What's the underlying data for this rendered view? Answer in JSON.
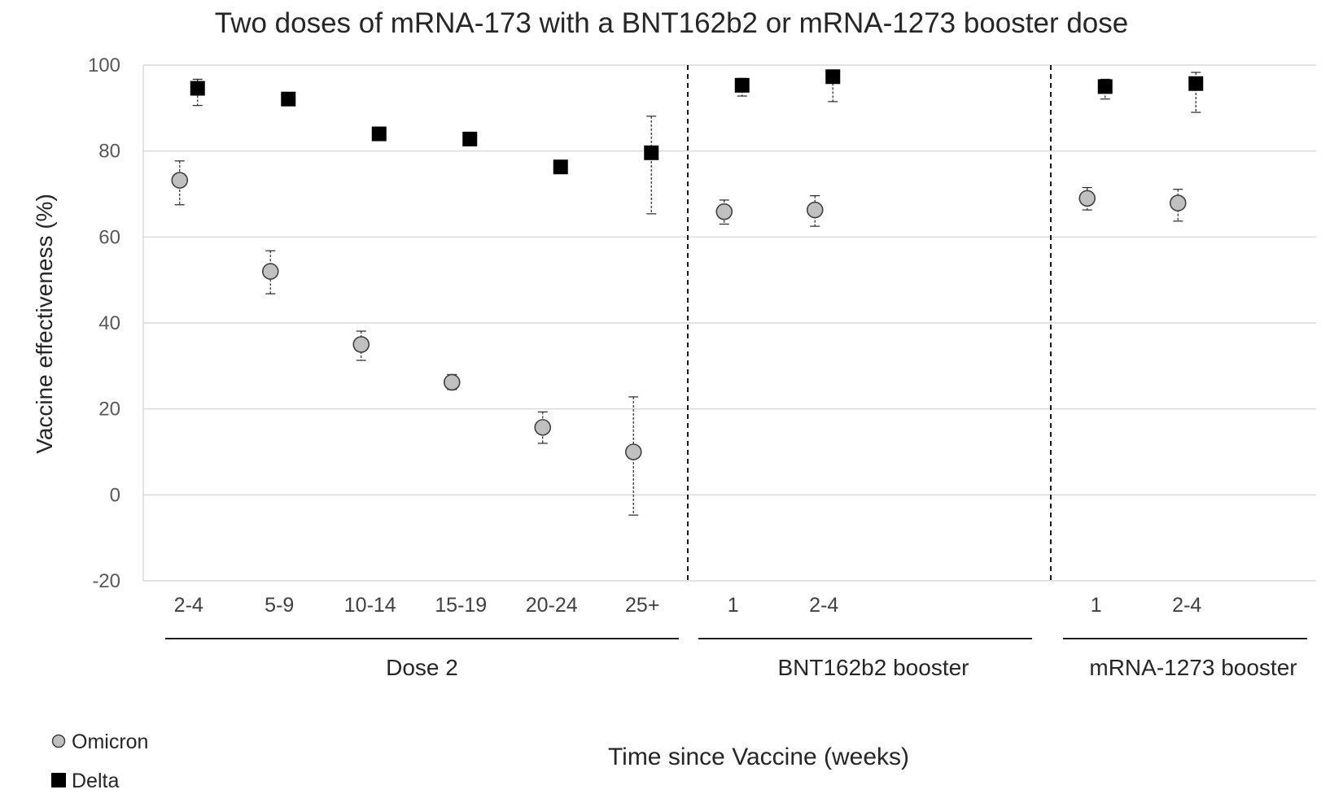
{
  "chart_data": {
    "type": "scatter",
    "title": "Two doses of mRNA-173 with a BNT162b2 or mRNA-1273 booster dose",
    "xlabel": "Time since Vaccine (weeks)",
    "ylabel": "Vaccine effectiveness (%)",
    "ylim": [
      -20,
      100
    ],
    "yticks": [
      -20,
      0,
      20,
      40,
      60,
      80,
      100
    ],
    "grid": true,
    "legend_position": "bottom-left",
    "groups": [
      {
        "label": "Dose 2",
        "categories": [
          "2-4",
          "5-9",
          "10-14",
          "15-19",
          "20-24",
          "25+"
        ]
      },
      {
        "label": "BNT162b2 booster",
        "categories": [
          "1",
          "2-4"
        ]
      },
      {
        "label": "mRNA-1273 booster",
        "categories": [
          "1",
          "2-4"
        ]
      }
    ],
    "categories": [
      "2-4",
      "5-9",
      "10-14",
      "15-19",
      "20-24",
      "25+",
      "1",
      "2-4",
      "1",
      "2-4"
    ],
    "series": [
      {
        "name": "Omicron",
        "marker": "circle",
        "color": "#c0c0c0",
        "values": [
          73.2,
          52.0,
          35.0,
          26.2,
          15.7,
          10.0,
          65.9,
          66.3,
          69.0,
          67.9
        ],
        "lower": [
          67.5,
          46.8,
          31.3,
          24.5,
          12.0,
          -4.7,
          63.0,
          62.5,
          66.3,
          63.7
        ],
        "upper": [
          77.7,
          56.8,
          38.1,
          28.0,
          19.3,
          22.8,
          68.6,
          69.6,
          71.5,
          71.1
        ]
      },
      {
        "name": "Delta",
        "marker": "square",
        "color": "#000000",
        "values": [
          94.6,
          92.1,
          84.0,
          82.8,
          76.3,
          79.6,
          95.3,
          97.3,
          95.0,
          95.7
        ],
        "lower": [
          90.6,
          91.2,
          83.0,
          82.0,
          75.7,
          65.4,
          92.8,
          91.5,
          92.1,
          89.0
        ],
        "upper": [
          96.7,
          92.9,
          84.9,
          83.6,
          76.9,
          88.1,
          96.9,
          98.6,
          96.7,
          98.3
        ]
      }
    ]
  }
}
